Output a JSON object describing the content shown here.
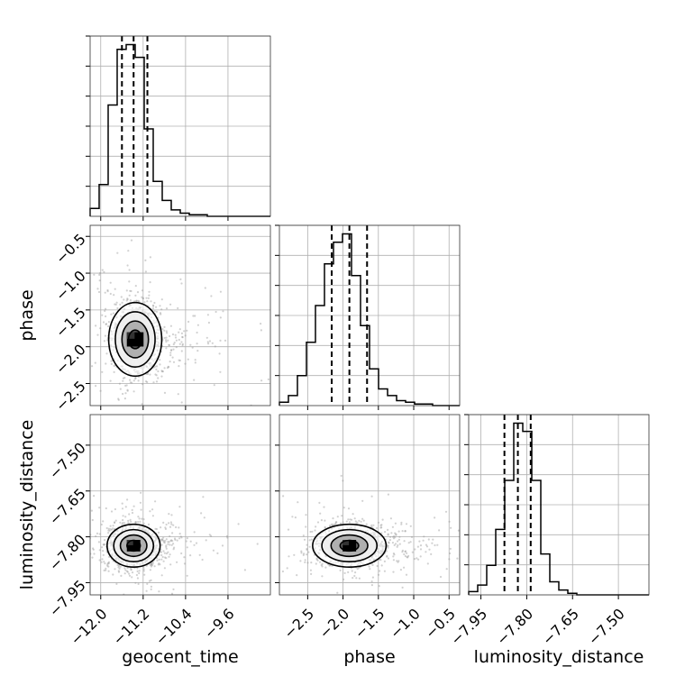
{
  "chart_data": {
    "type": "corner",
    "parameters": [
      "geocent_time",
      "phase",
      "luminosity_distance"
    ],
    "diagonal": [
      {
        "name": "geocent_time",
        "xlabel": "geocent_time",
        "xlim": [
          -12.2,
          -8.8
        ],
        "xticks": [
          -12.0,
          -11.2,
          -10.4,
          -9.6
        ],
        "xtick_labels": [
          "−12.0",
          "−11.2",
          "−10.4",
          "−9.6"
        ],
        "bins_edges": [
          -12.2,
          -12.03,
          -11.86,
          -11.69,
          -11.52,
          -11.35,
          -11.18,
          -11.01,
          -10.84,
          -10.67,
          -10.5,
          -10.33,
          -10.16,
          -9.99,
          -9.82,
          -9.65,
          -9.48,
          -9.31,
          -9.14,
          -8.97,
          -8.8
        ],
        "counts": [
          5,
          20,
          70,
          105,
          108,
          100,
          55,
          22,
          10,
          4,
          2,
          1,
          1,
          0,
          0,
          0,
          0,
          0,
          0,
          0
        ],
        "quantiles": [
          -11.6,
          -11.38,
          -11.12
        ],
        "grid": true
      },
      {
        "name": "phase",
        "xlabel": "phase",
        "xlim": [
          -2.9,
          -0.35
        ],
        "xticks": [
          -2.5,
          -2.0,
          -1.5,
          -1.0,
          -0.5
        ],
        "xtick_labels": [
          "−2.5",
          "−2.0",
          "−1.5",
          "−1.0",
          "−0.5"
        ],
        "bins_edges": [
          -2.9,
          -2.7725,
          -2.645,
          -2.5175,
          -2.39,
          -2.2625,
          -2.135,
          -2.0075,
          -1.88,
          -1.7525,
          -1.625,
          -1.4975,
          -1.37,
          -1.2425,
          -1.115,
          -0.9875,
          -0.86,
          -0.7325,
          -0.605,
          -0.4775,
          -0.35
        ],
        "counts": [
          2,
          6,
          18,
          38,
          60,
          85,
          98,
          103,
          78,
          48,
          22,
          10,
          6,
          3,
          2,
          1,
          1,
          0,
          0,
          0
        ],
        "quantiles": [
          -2.16,
          -1.91,
          -1.66
        ],
        "grid": true
      },
      {
        "name": "luminosity_distance",
        "xlabel": "luminosity_distance",
        "xlim": [
          -7.99,
          -7.4
        ],
        "xticks": [
          -7.95,
          -7.8,
          -7.65,
          -7.5
        ],
        "xtick_labels": [
          "−7.95",
          "−7.80",
          "−7.65",
          "−7.50"
        ],
        "bins_edges": [
          -7.99,
          -7.9605,
          -7.931,
          -7.9015,
          -7.872,
          -7.8425,
          -7.813,
          -7.7835,
          -7.754,
          -7.7245,
          -7.695,
          -7.6655,
          -7.636,
          -7.6065,
          -7.577,
          -7.5475,
          -7.518,
          -7.4885,
          -7.459,
          -7.4295,
          -7.4
        ],
        "counts": [
          2,
          6,
          18,
          40,
          70,
          105,
          100,
          70,
          25,
          8,
          3,
          1,
          0,
          0,
          0,
          0,
          0,
          0,
          0,
          0
        ],
        "quantiles": [
          -7.873,
          -7.829,
          -7.787
        ],
        "grid": true
      }
    ],
    "off_diagonal": [
      {
        "x": "geocent_time",
        "y": "phase",
        "ylabel": "phase",
        "ylim": [
          -2.8,
          -0.35
        ],
        "yticks": [
          -2.5,
          -2.0,
          -1.5,
          -1.0,
          -0.5
        ],
        "ytick_labels": [
          "−2.5",
          "−2.0",
          "−1.5",
          "−1.0",
          "−0.5"
        ],
        "center": [
          -11.35,
          -1.9
        ],
        "spread": [
          0.25,
          0.25
        ],
        "contour_levels_sigma": [
          0.5,
          1.0,
          1.5,
          2.0
        ]
      },
      {
        "x": "geocent_time",
        "y": "luminosity_distance",
        "ylabel": "luminosity_distance",
        "ylim": [
          -7.99,
          -7.4
        ],
        "yticks": [
          -7.95,
          -7.8,
          -7.65,
          -7.5
        ],
        "ytick_labels": [
          "−7.95",
          "−7.80",
          "−7.65",
          "−7.50"
        ],
        "center": [
          -11.38,
          -7.829
        ],
        "spread": [
          0.25,
          0.035
        ],
        "contour_levels_sigma": [
          0.5,
          1.0,
          1.5,
          2.0
        ]
      },
      {
        "x": "phase",
        "y": "luminosity_distance",
        "ylabel": "",
        "ylim": [
          -7.99,
          -7.4
        ],
        "center": [
          -1.91,
          -7.829
        ],
        "spread": [
          0.26,
          0.035
        ],
        "contour_levels_sigma": [
          0.5,
          1.0,
          1.5,
          2.0
        ]
      }
    ],
    "colors": {
      "line": "#000000",
      "scatter": "#9a9a9a",
      "density_high": "#000000",
      "density_mid": "#555555",
      "density_low": "#a8a8a8",
      "grid": "#b0b0b0"
    },
    "grid": true
  }
}
